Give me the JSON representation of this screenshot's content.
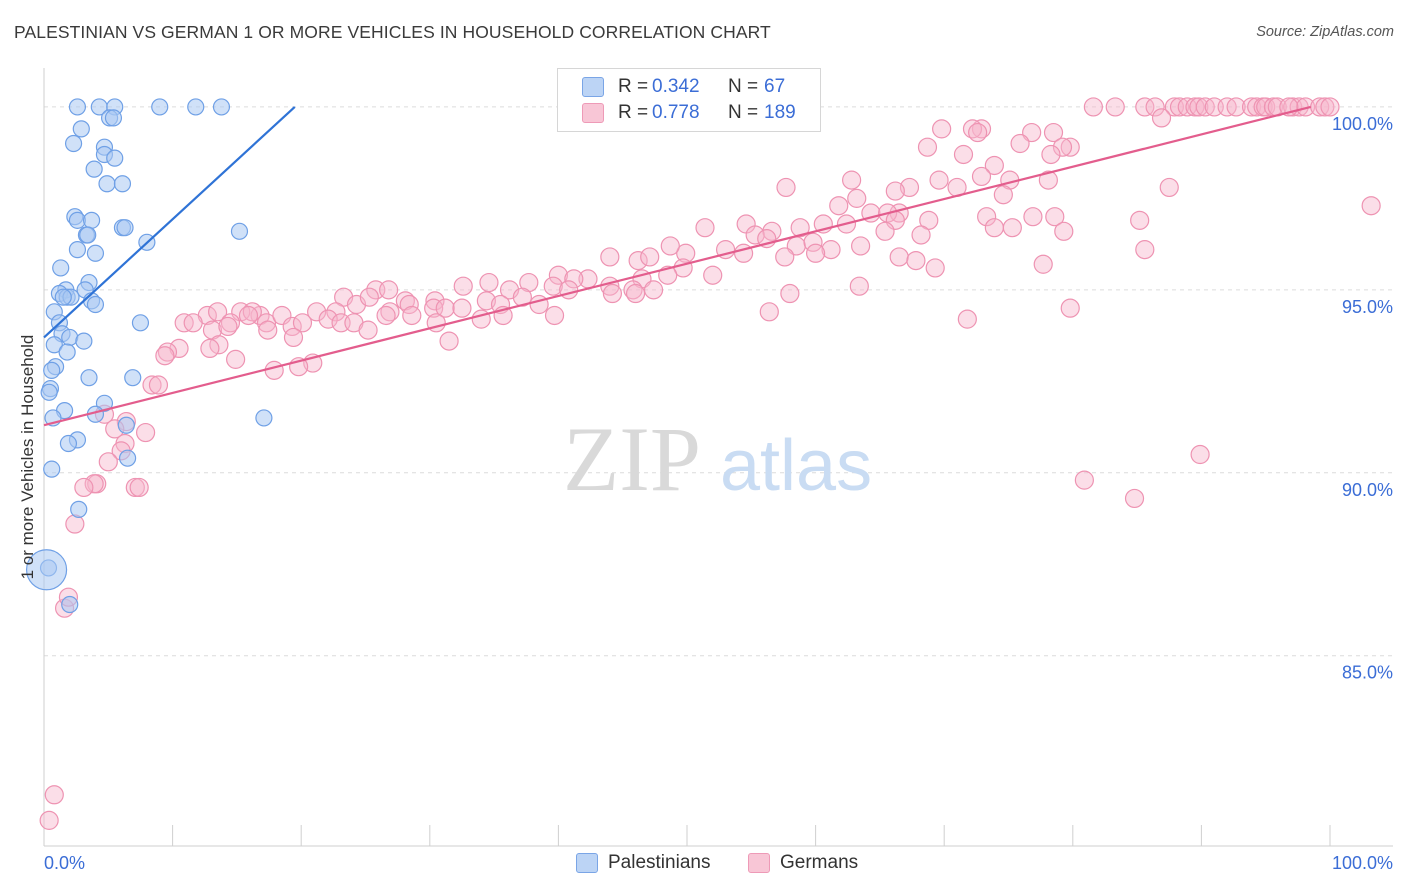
{
  "chart_data": {
    "type": "scatter",
    "title": "PALESTINIAN VS GERMAN 1 OR MORE VEHICLES IN HOUSEHOLD CORRELATION CHART",
    "source": "Source: ZipAtlas.com",
    "watermark": {
      "zip": "ZIP",
      "atlas": "atlas"
    },
    "xlabel": "",
    "ylabel": "1 or more Vehicles in Household",
    "xlim": [
      0,
      100
    ],
    "ylim": [
      79.8,
      100.9
    ],
    "x_tick_labels": {
      "left": "0.0%",
      "right": "100.0%"
    },
    "y_ticks": [
      {
        "value": 100,
        "label": "100.0%"
      },
      {
        "value": 95,
        "label": "95.0%"
      },
      {
        "value": 90,
        "label": "90.0%"
      },
      {
        "value": 85,
        "label": "85.0%"
      }
    ],
    "legend": {
      "r_label": "R =",
      "n_label": "N =",
      "entries": [
        {
          "name": "Palestinians",
          "r": "0.342",
          "n": "67"
        },
        {
          "name": "Germans",
          "r": "0.778",
          "n": "189"
        }
      ]
    },
    "colors": {
      "pal_fill": "#a9c8f3",
      "pal_stroke": "#6fa0e6",
      "pal_line": "#2f73d6",
      "ger_fill": "#f6b6cb",
      "ger_stroke": "#ee93b2",
      "ger_line": "#e35d8d",
      "value_text": "#3b6dd6",
      "grid": "#dcdcdc"
    },
    "series": [
      {
        "name": "Palestinians",
        "trend": {
          "x0": 0.0,
          "y0": 93.7,
          "x1": 19.5,
          "y1": 100.0
        },
        "points": [
          [
            2.6,
            100
          ],
          [
            4.3,
            100
          ],
          [
            5.5,
            100
          ],
          [
            9,
            100
          ],
          [
            11.8,
            100
          ],
          [
            13.8,
            100
          ],
          [
            5.1,
            99.7
          ],
          [
            5.4,
            99.7
          ],
          [
            2.9,
            99.4
          ],
          [
            2.3,
            99
          ],
          [
            4.7,
            98.9
          ],
          [
            4.7,
            98.7
          ],
          [
            5.5,
            98.6
          ],
          [
            3.9,
            98.3
          ],
          [
            4.9,
            97.9
          ],
          [
            6.1,
            97.9
          ],
          [
            2.4,
            97
          ],
          [
            2.6,
            96.9
          ],
          [
            3.7,
            96.9
          ],
          [
            6.1,
            96.7
          ],
          [
            6.3,
            96.7
          ],
          [
            15.2,
            96.6
          ],
          [
            3.3,
            96.5
          ],
          [
            3.4,
            96.5
          ],
          [
            8.0,
            96.3
          ],
          [
            4.0,
            96.0
          ],
          [
            2.6,
            96.1
          ],
          [
            1.3,
            95.6
          ],
          [
            3.5,
            95.2
          ],
          [
            1.7,
            95.0
          ],
          [
            3.2,
            95.0
          ],
          [
            1.2,
            94.9
          ],
          [
            1.8,
            94.8
          ],
          [
            2.1,
            94.8
          ],
          [
            3.7,
            94.7
          ],
          [
            1.5,
            94.8
          ],
          [
            4.0,
            94.6
          ],
          [
            0.8,
            94.4
          ],
          [
            1.2,
            94.1
          ],
          [
            7.5,
            94.1
          ],
          [
            1.4,
            93.8
          ],
          [
            2.0,
            93.7
          ],
          [
            3.1,
            93.6
          ],
          [
            0.8,
            93.5
          ],
          [
            1.8,
            93.3
          ],
          [
            0.9,
            92.9
          ],
          [
            0.6,
            92.8
          ],
          [
            3.5,
            92.6
          ],
          [
            6.9,
            92.6
          ],
          [
            0.5,
            92.3
          ],
          [
            0.4,
            92.2
          ],
          [
            4.7,
            91.9
          ],
          [
            1.6,
            91.7
          ],
          [
            4.0,
            91.6
          ],
          [
            0.7,
            91.5
          ],
          [
            17.1,
            91.5
          ],
          [
            6.4,
            91.3
          ],
          [
            2.6,
            90.9
          ],
          [
            1.9,
            90.8
          ],
          [
            6.5,
            90.4
          ],
          [
            0.6,
            90.1
          ],
          [
            2.7,
            89.0
          ],
          [
            2.0,
            86.4
          ],
          [
            0.35,
            87.4
          ]
        ],
        "big_point": [
          0.2,
          87.35
        ]
      },
      {
        "name": "Germans",
        "trend": {
          "x0": 0.0,
          "y0": 91.3,
          "x1": 98.5,
          "y1": 100.0
        },
        "points": [
          [
            81.6,
            100
          ],
          [
            83.3,
            100
          ],
          [
            85.6,
            100
          ],
          [
            86.4,
            100
          ],
          [
            87.9,
            100
          ],
          [
            88.3,
            100
          ],
          [
            88.9,
            100
          ],
          [
            89.5,
            100
          ],
          [
            89.8,
            100
          ],
          [
            90.3,
            100
          ],
          [
            91.0,
            100
          ],
          [
            92.0,
            100
          ],
          [
            92.7,
            100
          ],
          [
            93.9,
            100
          ],
          [
            94.3,
            100
          ],
          [
            94.8,
            100
          ],
          [
            95.0,
            100
          ],
          [
            95.6,
            100
          ],
          [
            95.9,
            100
          ],
          [
            97.1,
            100
          ],
          [
            97.6,
            100
          ],
          [
            98.1,
            100
          ],
          [
            99.2,
            100
          ],
          [
            99.6,
            100
          ],
          [
            100,
            100
          ],
          [
            96.8,
            100
          ],
          [
            86.9,
            99.7
          ],
          [
            69.8,
            99.4
          ],
          [
            72.9,
            99.4
          ],
          [
            72.2,
            99.4
          ],
          [
            76.8,
            99.3
          ],
          [
            78.5,
            99.3
          ],
          [
            72.6,
            99.3
          ],
          [
            75.9,
            99.0
          ],
          [
            79.8,
            98.9
          ],
          [
            79.2,
            98.9
          ],
          [
            68.7,
            98.9
          ],
          [
            71.5,
            98.7
          ],
          [
            78.3,
            98.7
          ],
          [
            73.9,
            98.4
          ],
          [
            72.9,
            98.1
          ],
          [
            75.1,
            98.0
          ],
          [
            78.1,
            98.0
          ],
          [
            69.6,
            98.0
          ],
          [
            62.8,
            98.0
          ],
          [
            71.0,
            97.8
          ],
          [
            67.3,
            97.8
          ],
          [
            57.7,
            97.8
          ],
          [
            66.2,
            97.7
          ],
          [
            74.6,
            97.6
          ],
          [
            87.5,
            97.8
          ],
          [
            63.2,
            97.5
          ],
          [
            103.2,
            97.3
          ],
          [
            64.3,
            97.1
          ],
          [
            66.5,
            97.1
          ],
          [
            68.8,
            96.9
          ],
          [
            73.3,
            97.0
          ],
          [
            76.9,
            97.0
          ],
          [
            78.6,
            97.0
          ],
          [
            61.8,
            97.3
          ],
          [
            65.6,
            97.1
          ],
          [
            66.2,
            96.9
          ],
          [
            85.2,
            96.9
          ],
          [
            51.4,
            96.7
          ],
          [
            54.6,
            96.8
          ],
          [
            56.6,
            96.6
          ],
          [
            58.8,
            96.7
          ],
          [
            60.6,
            96.8
          ],
          [
            62.4,
            96.8
          ],
          [
            65.4,
            96.6
          ],
          [
            55.3,
            96.5
          ],
          [
            56.2,
            96.4
          ],
          [
            58.5,
            96.2
          ],
          [
            59.8,
            96.3
          ],
          [
            61.2,
            96.1
          ],
          [
            63.5,
            96.2
          ],
          [
            68.2,
            96.5
          ],
          [
            75.3,
            96.7
          ],
          [
            79.3,
            96.6
          ],
          [
            53.0,
            96.1
          ],
          [
            49.9,
            96.0
          ],
          [
            54.4,
            96.0
          ],
          [
            57.6,
            95.9
          ],
          [
            60.0,
            96.0
          ],
          [
            66.5,
            95.9
          ],
          [
            67.8,
            95.8
          ],
          [
            69.3,
            95.6
          ],
          [
            77.7,
            95.7
          ],
          [
            85.6,
            96.1
          ],
          [
            44.0,
            95.9
          ],
          [
            46.2,
            95.8
          ],
          [
            47.1,
            95.9
          ],
          [
            48.7,
            96.2
          ],
          [
            40.0,
            95.4
          ],
          [
            42.3,
            95.3
          ],
          [
            49.7,
            95.6
          ],
          [
            52.0,
            95.4
          ],
          [
            46.5,
            95.3
          ],
          [
            48.5,
            95.4
          ],
          [
            44.0,
            95.1
          ],
          [
            45.8,
            95.0
          ],
          [
            47.4,
            95.0
          ],
          [
            41.2,
            95.3
          ],
          [
            44.2,
            94.9
          ],
          [
            32.6,
            95.1
          ],
          [
            34.6,
            95.2
          ],
          [
            36.2,
            95.0
          ],
          [
            37.7,
            95.2
          ],
          [
            39.6,
            95.1
          ],
          [
            40.8,
            95.0
          ],
          [
            46.0,
            94.9
          ],
          [
            37.2,
            94.8
          ],
          [
            34.4,
            94.7
          ],
          [
            35.5,
            94.6
          ],
          [
            30.4,
            94.7
          ],
          [
            28.1,
            94.7
          ],
          [
            25.8,
            95.0
          ],
          [
            26.8,
            95.0
          ],
          [
            23.3,
            94.8
          ],
          [
            21.2,
            94.4
          ],
          [
            22.7,
            94.4
          ],
          [
            24.3,
            94.6
          ],
          [
            25.3,
            94.8
          ],
          [
            26.9,
            94.4
          ],
          [
            28.4,
            94.6
          ],
          [
            30.3,
            94.5
          ],
          [
            31.2,
            94.5
          ],
          [
            32.5,
            94.5
          ],
          [
            34.0,
            94.2
          ],
          [
            35.7,
            94.3
          ],
          [
            38.5,
            94.6
          ],
          [
            39.7,
            94.3
          ],
          [
            16.8,
            94.3
          ],
          [
            17.3,
            94.1
          ],
          [
            18.5,
            94.3
          ],
          [
            19.3,
            94.0
          ],
          [
            20.1,
            94.1
          ],
          [
            22.1,
            94.2
          ],
          [
            23.1,
            94.1
          ],
          [
            24.1,
            94.1
          ],
          [
            25.2,
            93.9
          ],
          [
            26.6,
            94.3
          ],
          [
            28.6,
            94.3
          ],
          [
            30.5,
            94.1
          ],
          [
            15.3,
            94.4
          ],
          [
            16.2,
            94.4
          ],
          [
            12.7,
            94.3
          ],
          [
            13.5,
            94.4
          ],
          [
            14.5,
            94.1
          ],
          [
            15.9,
            94.3
          ],
          [
            10.9,
            94.1
          ],
          [
            11.6,
            94.1
          ],
          [
            13.1,
            93.9
          ],
          [
            14.3,
            94.0
          ],
          [
            17.4,
            93.9
          ],
          [
            19.4,
            93.7
          ],
          [
            31.5,
            93.6
          ],
          [
            13.6,
            93.5
          ],
          [
            12.9,
            93.4
          ],
          [
            10.5,
            93.4
          ],
          [
            9.6,
            93.3
          ],
          [
            9.4,
            93.2
          ],
          [
            14.9,
            93.1
          ],
          [
            20.9,
            93.0
          ],
          [
            17.9,
            92.8
          ],
          [
            19.8,
            92.9
          ],
          [
            8.4,
            92.4
          ],
          [
            8.9,
            92.4
          ],
          [
            6.4,
            91.4
          ],
          [
            5.5,
            91.2
          ],
          [
            4.7,
            91.6
          ],
          [
            6.3,
            90.8
          ],
          [
            6.0,
            90.6
          ],
          [
            7.9,
            91.1
          ],
          [
            5.0,
            90.3
          ],
          [
            4.1,
            89.7
          ],
          [
            3.9,
            89.7
          ],
          [
            3.1,
            89.6
          ],
          [
            7.1,
            89.6
          ],
          [
            7.4,
            89.6
          ],
          [
            2.4,
            88.6
          ],
          [
            1.6,
            86.3
          ],
          [
            1.9,
            86.6
          ],
          [
            0.8,
            81.2
          ],
          [
            0.4,
            80.5
          ],
          [
            56.4,
            94.4
          ],
          [
            71.8,
            94.2
          ],
          [
            79.8,
            94.5
          ],
          [
            84.8,
            89.3
          ],
          [
            80.9,
            89.8
          ],
          [
            89.9,
            90.5
          ],
          [
            58.0,
            94.9
          ],
          [
            63.4,
            95.1
          ],
          [
            73.9,
            96.7
          ]
        ]
      }
    ]
  }
}
